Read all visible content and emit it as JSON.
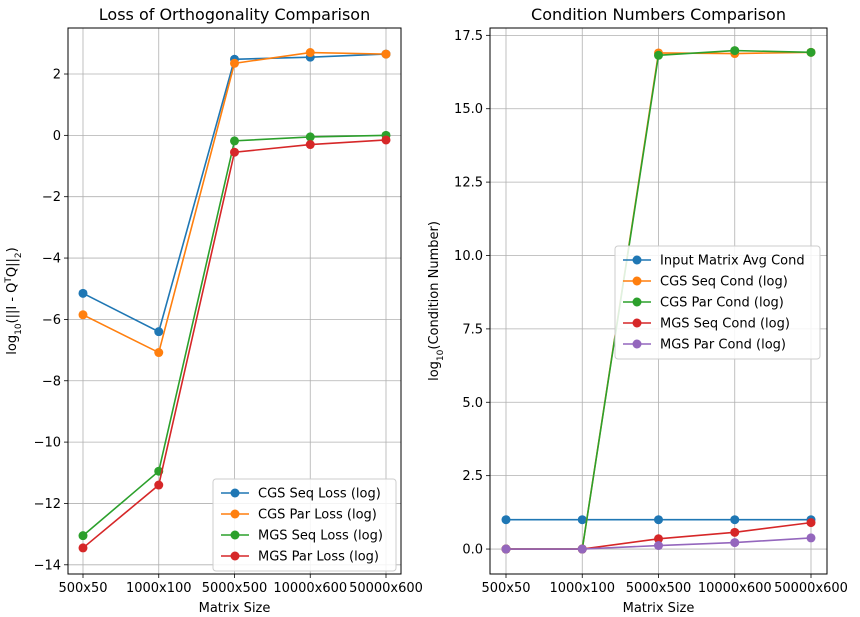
{
  "chart_data": [
    {
      "type": "line",
      "title": "Loss of Orthogonality Comparison",
      "xlabel": "Matrix Size",
      "ylabel": "log10(||I - Q^T Q||2)",
      "categories": [
        "500x50",
        "1000x100",
        "5000x500",
        "10000x600",
        "50000x600"
      ],
      "ylim": [
        -14.3,
        3.5
      ],
      "yticks": [
        -14,
        -12,
        -10,
        -8,
        -6,
        -4,
        -2,
        0,
        2
      ],
      "grid": true,
      "legend_position": "lower-right",
      "series": [
        {
          "name": "CGS Seq Loss (log)",
          "color": "#1f77b4",
          "values": [
            -5.15,
            -6.4,
            2.48,
            2.55,
            2.65
          ]
        },
        {
          "name": "CGS Par Loss (log)",
          "color": "#ff7f0e",
          "values": [
            -5.85,
            -7.08,
            2.35,
            2.7,
            2.65
          ]
        },
        {
          "name": "MGS Seq Loss (log)",
          "color": "#2ca02c",
          "values": [
            -13.05,
            -10.95,
            -0.18,
            -0.05,
            0.0
          ]
        },
        {
          "name": "MGS Par Loss (log)",
          "color": "#d62728",
          "values": [
            -13.45,
            -11.4,
            -0.55,
            -0.3,
            -0.15
          ]
        }
      ]
    },
    {
      "type": "line",
      "title": "Condition Numbers Comparison",
      "xlabel": "Matrix Size",
      "ylabel": "log10(Condition Number)",
      "categories": [
        "500x50",
        "1000x100",
        "5000x500",
        "10000x600",
        "50000x600"
      ],
      "ylim": [
        -0.85,
        17.75
      ],
      "yticks": [
        0.0,
        2.5,
        5.0,
        7.5,
        10.0,
        12.5,
        15.0,
        17.5
      ],
      "grid": true,
      "legend_position": "center-right",
      "series": [
        {
          "name": "Input Matrix Avg Cond",
          "color": "#1f77b4",
          "values": [
            1.0,
            1.0,
            1.0,
            1.0,
            1.0
          ]
        },
        {
          "name": "CGS Seq Cond (log)",
          "color": "#ff7f0e",
          "values": [
            0.0,
            0.0,
            16.9,
            16.88,
            16.92
          ]
        },
        {
          "name": "CGS Par Cond (log)",
          "color": "#2ca02c",
          "values": [
            0.0,
            0.0,
            16.82,
            16.98,
            16.92
          ]
        },
        {
          "name": "MGS Seq Cond (log)",
          "color": "#d62728",
          "values": [
            0.0,
            0.0,
            0.35,
            0.57,
            0.9
          ]
        },
        {
          "name": "MGS Par Cond (log)",
          "color": "#9467bd",
          "values": [
            0.0,
            0.0,
            0.12,
            0.22,
            0.38
          ]
        }
      ]
    }
  ]
}
